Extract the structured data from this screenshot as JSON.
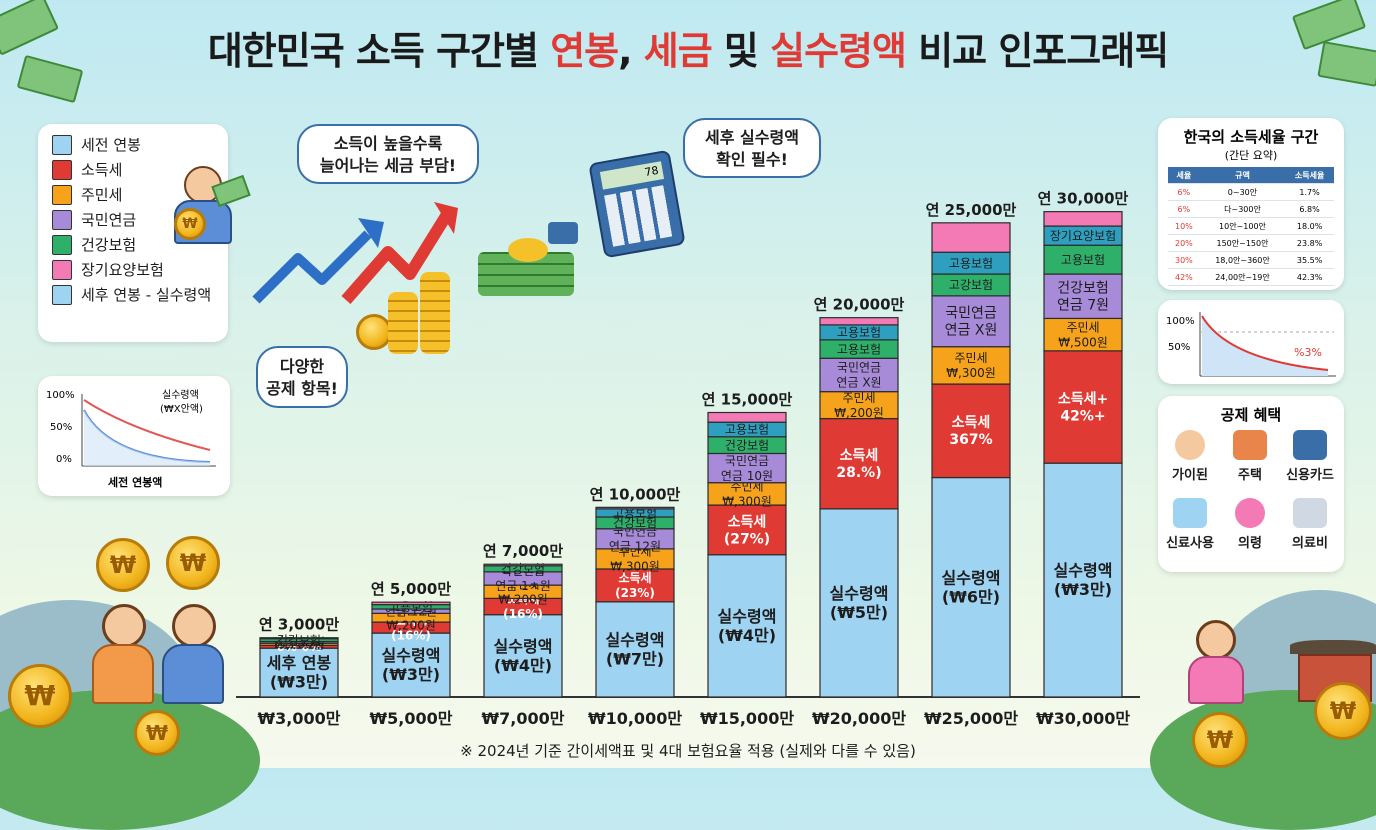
{
  "title": {
    "part1": "대한민국 소득 구간별 ",
    "part2": "연봉",
    "part3": ", ",
    "part4": "세금",
    "part5": " 및 ",
    "part6": "실수령액",
    "part7": " 비교 인포그래픽"
  },
  "legend": [
    {
      "label": "세전 연봉",
      "color": "#9fd3f2"
    },
    {
      "label": "소득세",
      "color": "#e03a34"
    },
    {
      "label": "주민세",
      "color": "#f7a21b"
    },
    {
      "label": "국민연금",
      "color": "#a78bd8"
    },
    {
      "label": "건강보험",
      "color": "#2fb06a"
    },
    {
      "label": "장기요양보험",
      "color": "#f47ab6"
    },
    {
      "label": "세후 연봉 - 실수령액",
      "color": "#9fd3f2"
    }
  ],
  "bubbles": {
    "tax_burden": [
      "소득이 높을수록",
      "늘어나는 세금 부담!"
    ],
    "check": [
      "세후 실수령액",
      "확인 필수!"
    ],
    "deduction": [
      "다양한",
      "공제 항목!"
    ]
  },
  "mini_chart": {
    "y_labels": [
      "100%",
      "50%",
      "0%"
    ],
    "legend": [
      "실수령액",
      "(₩X안액)"
    ],
    "xlabel": "세전 연봉액"
  },
  "tax_table": {
    "title": "한국의 소득세율 구간",
    "subtitle": "(간단 요약)",
    "headers": [
      "세율",
      "규액",
      "소득세율"
    ],
    "rows": [
      [
        "6%",
        "0~30안",
        "1.7%"
      ],
      [
        "6%",
        "다~300안",
        "6.8%"
      ],
      [
        "10%",
        "10안~100안",
        "18.0%"
      ],
      [
        "20%",
        "150안~150안",
        "23.8%"
      ],
      [
        "30%",
        "18,0안~360안",
        "35.5%"
      ],
      [
        "42%",
        "24,00안~19안",
        "42.3%"
      ]
    ]
  },
  "decline_chart": {
    "y_labels": [
      "100%",
      "50%"
    ],
    "value": "%3%"
  },
  "deductions": {
    "title": "공제 혜택",
    "items": [
      "가이된",
      "주택",
      "신용카드",
      "신료사용",
      "의령",
      "의료비"
    ]
  },
  "calc_display": "78",
  "footnote": "※ 2024년 기준 간이세액표 및 4대 보험요율 적용 (실제와 다를 수 있음)",
  "chart_data": {
    "type": "bar",
    "stacked": true,
    "unit": "만원",
    "categories": [
      "₩3,000만",
      "₩5,000만",
      "₩7,000만",
      "₩10,000만",
      "₩15,000만",
      "₩20,000만",
      "₩25,000만",
      "₩30,000만"
    ],
    "top_labels": [
      "연 3,000만",
      "연 5,000만",
      "연 7,000만",
      "연 10,000만",
      "연 15,000만",
      "연 20,000만",
      "연 25,000만",
      "연 30,000만"
    ],
    "values": [
      3000,
      5000,
      7000,
      10000,
      15000,
      20000,
      25000,
      30000
    ],
    "ylim": [
      0,
      30000
    ],
    "colors": {
      "net": "#9fd3f2",
      "income_tax": "#e03a34",
      "resident": "#f7a21b",
      "pension": "#a78bd8",
      "health": "#2fb06a",
      "employ": "#2e9fbf",
      "longterm": "#f47ab6"
    },
    "bars": [
      {
        "segments": [
          {
            "type": "net",
            "value": 2575,
            "label": "세후 연봉\n(₩3만)"
          },
          {
            "type": "income_tax",
            "value": 150,
            "label": "6% 6%"
          },
          {
            "type": "resident",
            "value": 110,
            "label": "₩,200텐"
          },
          {
            "type": "pension",
            "value": 90,
            "label": "안금 13원"
          },
          {
            "type": "health",
            "value": 150,
            "label": "건강보험"
          },
          {
            "type": "longterm",
            "value": 50,
            "label": ""
          }
        ]
      },
      {
        "segments": [
          {
            "type": "net",
            "value": 3370,
            "label": "실수령액\n(₩3만)"
          },
          {
            "type": "income_tax",
            "value": 580,
            "label": "소득세\n(16%)"
          },
          {
            "type": "resident",
            "value": 460,
            "label": "주민세\n₩,200원"
          },
          {
            "type": "pension",
            "value": 230,
            "label": "연금 12원"
          },
          {
            "type": "health",
            "value": 230,
            "label": "고용보험"
          },
          {
            "type": "longterm",
            "value": 130,
            "label": ""
          }
        ]
      },
      {
        "segments": [
          {
            "type": "net",
            "value": 4340,
            "label": "실수령액\n(₩4만)"
          },
          {
            "type": "income_tax",
            "value": 860,
            "label": "소득세\n(16%)"
          },
          {
            "type": "resident",
            "value": 700,
            "label": "주민세\n₩.200원"
          },
          {
            "type": "pension",
            "value": 700,
            "label": "국민면금\n연금 1ㅊ원"
          },
          {
            "type": "health",
            "value": 320,
            "label": "건강보험"
          },
          {
            "type": "longterm",
            "value": 80,
            "label": ""
          }
        ]
      },
      {
        "segments": [
          {
            "type": "net",
            "value": 5020,
            "label": "실수령액\n(₩7만)"
          },
          {
            "type": "income_tax",
            "value": 1730,
            "label": "소득세\n(23%)"
          },
          {
            "type": "resident",
            "value": 1060,
            "label": "주빈세\n₩,300원"
          },
          {
            "type": "pension",
            "value": 1060,
            "label": "국민연금\n연금 12원"
          },
          {
            "type": "health",
            "value": 620,
            "label": "건강보험"
          },
          {
            "type": "employ",
            "value": 430,
            "label": "고용보험"
          },
          {
            "type": "longterm",
            "value": 80,
            "label": ""
          }
        ]
      },
      {
        "segments": [
          {
            "type": "net",
            "value": 7500,
            "label": "실수령액\n(₩4만)"
          },
          {
            "type": "income_tax",
            "value": 2620,
            "label": "소득세\n(27%)"
          },
          {
            "type": "resident",
            "value": 1180,
            "label": "주민세\n₩,300원"
          },
          {
            "type": "pension",
            "value": 1540,
            "label": "국민연금\n연금 10원"
          },
          {
            "type": "health",
            "value": 880,
            "label": "건강보험"
          },
          {
            "type": "employ",
            "value": 770,
            "label": "고용보험"
          },
          {
            "type": "longterm",
            "value": 510,
            "label": ""
          }
        ]
      },
      {
        "segments": [
          {
            "type": "net",
            "value": 9920,
            "label": "실수령액\n(₩5만)"
          },
          {
            "type": "income_tax",
            "value": 4760,
            "label": "소득세\n28.%)"
          },
          {
            "type": "resident",
            "value": 1420,
            "label": "주민세\n₩,200원"
          },
          {
            "type": "pension",
            "value": 1760,
            "label": "국민연금\n연금 X원"
          },
          {
            "type": "health",
            "value": 970,
            "label": "고용보험"
          },
          {
            "type": "employ",
            "value": 790,
            "label": "고용보험"
          },
          {
            "type": "longterm",
            "value": 380,
            "label": ""
          }
        ]
      },
      {
        "segments": [
          {
            "type": "net",
            "value": 11570,
            "label": "실수령액\n(₩6만)"
          },
          {
            "type": "income_tax",
            "value": 4930,
            "label": "소득세\n367%"
          },
          {
            "type": "resident",
            "value": 1970,
            "label": "주민세\n₩,300원"
          },
          {
            "type": "pension",
            "value": 2680,
            "label": "국민연금\n연금 X원"
          },
          {
            "type": "health",
            "value": 1150,
            "label": "고강보험"
          },
          {
            "type": "employ",
            "value": 1150,
            "label": "고용보험"
          },
          {
            "type": "longterm",
            "value": 1550,
            "label": ""
          }
        ]
      },
      {
        "segments": [
          {
            "type": "net",
            "value": 12330,
            "label": "실수령액\n(₩3만)"
          },
          {
            "type": "income_tax",
            "value": 5920,
            "label": "소득세+\n42%+"
          },
          {
            "type": "resident",
            "value": 1710,
            "label": "주민세\n₩,500원"
          },
          {
            "type": "pension",
            "value": 2340,
            "label": "건강보험\n연금 7원"
          },
          {
            "type": "health",
            "value": 1520,
            "label": "고용보험"
          },
          {
            "type": "employ",
            "value": 1010,
            "label": "장기요양보험"
          },
          {
            "type": "longterm",
            "value": 760,
            "label": ""
          }
        ]
      }
    ]
  }
}
